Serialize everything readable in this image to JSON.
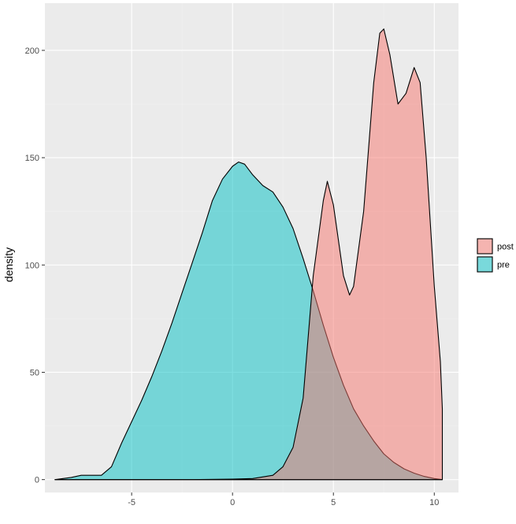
{
  "chart_data": {
    "type": "area",
    "title": "",
    "xlabel": "",
    "ylabel": "density",
    "xlim": [
      -9.3,
      11.2
    ],
    "ylim": [
      -6,
      222
    ],
    "x_ticks": [
      -5,
      0,
      5,
      10
    ],
    "x_tick_labels": [
      "-5",
      "0",
      "5",
      "10"
    ],
    "y_ticks": [
      0,
      50,
      100,
      150,
      200
    ],
    "y_tick_labels": [
      "0",
      "50",
      "100",
      "150",
      "200"
    ],
    "grid": true,
    "panel_background": "#ebebeb",
    "legend_position": "right",
    "series": [
      {
        "name": "pre",
        "color": "#00bfc4",
        "points": [
          [
            -8.8,
            0
          ],
          [
            -8.0,
            1
          ],
          [
            -7.5,
            2
          ],
          [
            -7.0,
            2
          ],
          [
            -6.5,
            2
          ],
          [
            -6.0,
            6
          ],
          [
            -5.5,
            17
          ],
          [
            -5.0,
            27
          ],
          [
            -4.5,
            37
          ],
          [
            -4.0,
            48
          ],
          [
            -3.5,
            60
          ],
          [
            -3.0,
            73
          ],
          [
            -2.5,
            87
          ],
          [
            -2.0,
            101
          ],
          [
            -1.5,
            115
          ],
          [
            -1.0,
            130
          ],
          [
            -0.5,
            140
          ],
          [
            0.0,
            146
          ],
          [
            0.3,
            148
          ],
          [
            0.6,
            147
          ],
          [
            1.0,
            142
          ],
          [
            1.5,
            137
          ],
          [
            2.0,
            134
          ],
          [
            2.5,
            127
          ],
          [
            3.0,
            117
          ],
          [
            3.5,
            103
          ],
          [
            4.0,
            88
          ],
          [
            4.5,
            72
          ],
          [
            5.0,
            57
          ],
          [
            5.5,
            44
          ],
          [
            6.0,
            33
          ],
          [
            6.5,
            25
          ],
          [
            7.0,
            18
          ],
          [
            7.5,
            12
          ],
          [
            8.0,
            8
          ],
          [
            8.5,
            5
          ],
          [
            9.0,
            3
          ],
          [
            9.5,
            1.5
          ],
          [
            10.0,
            0.5
          ],
          [
            10.4,
            0
          ]
        ]
      },
      {
        "name": "post",
        "color": "#f8766d",
        "points": [
          [
            -8.8,
            0
          ],
          [
            -2.0,
            0
          ],
          [
            0.0,
            0.2
          ],
          [
            1.0,
            0.5
          ],
          [
            2.0,
            2
          ],
          [
            2.5,
            6
          ],
          [
            3.0,
            15
          ],
          [
            3.5,
            38
          ],
          [
            4.0,
            95
          ],
          [
            4.5,
            130
          ],
          [
            4.7,
            139
          ],
          [
            5.0,
            128
          ],
          [
            5.5,
            95
          ],
          [
            5.8,
            86
          ],
          [
            6.0,
            90
          ],
          [
            6.5,
            125
          ],
          [
            7.0,
            185
          ],
          [
            7.3,
            208
          ],
          [
            7.5,
            210
          ],
          [
            7.8,
            198
          ],
          [
            8.2,
            175
          ],
          [
            8.6,
            180
          ],
          [
            9.0,
            192
          ],
          [
            9.3,
            185
          ],
          [
            9.6,
            150
          ],
          [
            10.0,
            90
          ],
          [
            10.3,
            55
          ],
          [
            10.4,
            33
          ],
          [
            10.4,
            0
          ]
        ]
      }
    ]
  }
}
